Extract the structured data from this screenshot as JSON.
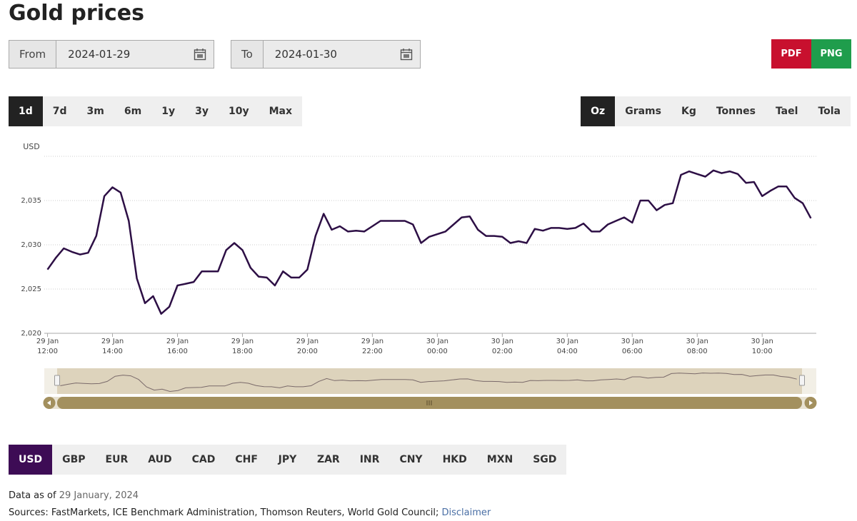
{
  "header": {
    "title": "Gold prices"
  },
  "date_range": {
    "from_label": "From",
    "from_value": "2024-01-29",
    "to_label": "To",
    "to_value": "2024-01-30"
  },
  "export_buttons": [
    "PDF",
    "PNG"
  ],
  "period_tabs": {
    "items": [
      "1d",
      "7d",
      "3m",
      "6m",
      "1y",
      "3y",
      "10y",
      "Max"
    ],
    "selected": 0
  },
  "unit_tabs": {
    "items": [
      "Oz",
      "Grams",
      "Kg",
      "Tonnes",
      "Tael",
      "Tola"
    ],
    "selected": 0
  },
  "chart_data": {
    "type": "line",
    "y_axis_label": "USD",
    "color": "#2d0f45",
    "grid": true,
    "ylim": [
      2020,
      2040
    ],
    "yticks": [
      {
        "value": 2020,
        "label": "2,020"
      },
      {
        "value": 2025,
        "label": "2,025"
      },
      {
        "value": 2030,
        "label": "2,030"
      },
      {
        "value": 2035,
        "label": "2,035"
      }
    ],
    "xlim": [
      "29 Jan 11:54",
      "30 Jan 11:40"
    ],
    "xticks": [
      {
        "value": "29 Jan 12:00",
        "label": [
          "29 Jan",
          "12:00"
        ]
      },
      {
        "value": "29 Jan 14:00",
        "label": [
          "29 Jan",
          "14:00"
        ]
      },
      {
        "value": "29 Jan 16:00",
        "label": [
          "29 Jan",
          "16:00"
        ]
      },
      {
        "value": "29 Jan 18:00",
        "label": [
          "29 Jan",
          "18:00"
        ]
      },
      {
        "value": "29 Jan 20:00",
        "label": [
          "29 Jan",
          "20:00"
        ]
      },
      {
        "value": "29 Jan 22:00",
        "label": [
          "29 Jan",
          "22:00"
        ]
      },
      {
        "value": "30 Jan 00:00",
        "label": [
          "30 Jan",
          "00:00"
        ]
      },
      {
        "value": "30 Jan 02:00",
        "label": [
          "30 Jan",
          "02:00"
        ]
      },
      {
        "value": "30 Jan 04:00",
        "label": [
          "30 Jan",
          "04:00"
        ]
      },
      {
        "value": "30 Jan 06:00",
        "label": [
          "30 Jan",
          "06:00"
        ]
      },
      {
        "value": "30 Jan 08:00",
        "label": [
          "30 Jan",
          "08:00"
        ]
      },
      {
        "value": "30 Jan 10:00",
        "label": [
          "30 Jan",
          "10:00"
        ]
      }
    ],
    "x": [
      "29 Jan 12:00",
      "29 Jan 12:15",
      "29 Jan 12:30",
      "29 Jan 12:45",
      "29 Jan 13:00",
      "29 Jan 13:15",
      "29 Jan 13:30",
      "29 Jan 13:45",
      "29 Jan 14:00",
      "29 Jan 14:15",
      "29 Jan 14:30",
      "29 Jan 14:45",
      "29 Jan 15:00",
      "29 Jan 15:15",
      "29 Jan 15:30",
      "29 Jan 15:45",
      "29 Jan 16:00",
      "29 Jan 16:15",
      "29 Jan 16:30",
      "29 Jan 16:45",
      "29 Jan 17:00",
      "29 Jan 17:15",
      "29 Jan 17:30",
      "29 Jan 17:45",
      "29 Jan 18:00",
      "29 Jan 18:15",
      "29 Jan 18:30",
      "29 Jan 18:45",
      "29 Jan 19:00",
      "29 Jan 19:15",
      "29 Jan 19:30",
      "29 Jan 19:45",
      "29 Jan 20:00",
      "29 Jan 20:15",
      "29 Jan 20:30",
      "29 Jan 20:45",
      "29 Jan 21:00",
      "29 Jan 21:15",
      "29 Jan 21:30",
      "29 Jan 21:45",
      "29 Jan 22:00",
      "29 Jan 22:15",
      "29 Jan 22:30",
      "29 Jan 22:45",
      "29 Jan 23:00",
      "29 Jan 23:15",
      "29 Jan 23:30",
      "29 Jan 23:45",
      "30 Jan 00:00",
      "30 Jan 00:15",
      "30 Jan 00:30",
      "30 Jan 00:45",
      "30 Jan 01:00",
      "30 Jan 01:15",
      "30 Jan 01:30",
      "30 Jan 01:45",
      "30 Jan 02:00",
      "30 Jan 02:15",
      "30 Jan 02:30",
      "30 Jan 02:45",
      "30 Jan 03:00",
      "30 Jan 03:15",
      "30 Jan 03:30",
      "30 Jan 03:45",
      "30 Jan 04:00",
      "30 Jan 04:15",
      "30 Jan 04:30",
      "30 Jan 04:45",
      "30 Jan 05:00",
      "30 Jan 05:15",
      "30 Jan 05:30",
      "30 Jan 05:45",
      "30 Jan 06:00",
      "30 Jan 06:15",
      "30 Jan 06:30",
      "30 Jan 06:45",
      "30 Jan 07:00",
      "30 Jan 07:15",
      "30 Jan 07:30",
      "30 Jan 07:45",
      "30 Jan 08:00",
      "30 Jan 08:15",
      "30 Jan 08:30",
      "30 Jan 08:45",
      "30 Jan 09:00",
      "30 Jan 09:15",
      "30 Jan 09:30",
      "30 Jan 09:45",
      "30 Jan 10:00",
      "30 Jan 10:15",
      "30 Jan 10:30",
      "30 Jan 10:45",
      "30 Jan 11:00",
      "30 Jan 11:15",
      "30 Jan 11:30"
    ],
    "values": [
      2027.2,
      2028.5,
      2029.6,
      2029.2,
      2028.9,
      2029.1,
      2031.0,
      2035.5,
      2036.5,
      2035.9,
      2032.7,
      2026.2,
      2023.4,
      2024.2,
      2022.2,
      2023.0,
      2025.4,
      2025.6,
      2025.8,
      2027.0,
      2027.0,
      2027.0,
      2029.4,
      2030.2,
      2029.4,
      2027.4,
      2026.4,
      2026.3,
      2025.4,
      2027.0,
      2026.3,
      2026.3,
      2027.2,
      2031.0,
      2033.5,
      2031.7,
      2032.1,
      2031.5,
      2031.6,
      2031.5,
      2032.1,
      2032.7,
      2032.7,
      2032.7,
      2032.7,
      2032.3,
      2030.2,
      2030.9,
      2031.2,
      2031.5,
      2032.3,
      2033.1,
      2033.2,
      2031.7,
      2031.0,
      2031.0,
      2030.9,
      2030.2,
      2030.4,
      2030.2,
      2031.8,
      2031.6,
      2031.9,
      2031.9,
      2031.8,
      2031.9,
      2032.4,
      2031.5,
      2031.5,
      2032.3,
      2032.7,
      2033.1,
      2032.5,
      2035.0,
      2035.0,
      2033.9,
      2034.5,
      2034.7,
      2037.9,
      2038.3,
      2038.0,
      2037.7,
      2038.4,
      2038.1,
      2038.3,
      2038.0,
      2037.0,
      2037.1,
      2035.5,
      2036.1,
      2036.6,
      2036.6,
      2035.3,
      2034.7,
      2033.0
    ]
  },
  "currency_tabs": {
    "items": [
      "USD",
      "GBP",
      "EUR",
      "AUD",
      "CAD",
      "CHF",
      "JPY",
      "ZAR",
      "INR",
      "CNY",
      "HKD",
      "MXN",
      "SGD"
    ],
    "selected": 0
  },
  "footer": {
    "data_as_of_label": "Data as of",
    "data_as_of_date": "29 January, 2024",
    "sources": "Sources: FastMarkets, ICE Benchmark Administration, Thomson Reuters, World Gold Council;",
    "disclaimer": "Disclaimer"
  }
}
